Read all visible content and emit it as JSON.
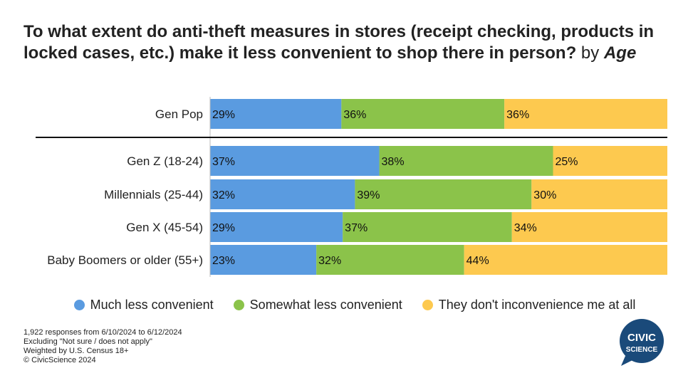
{
  "title": {
    "main": "To what extent do anti-theft measures in stores (receipt checking, products in locked cases, etc.) make it less convenient to shop there in person?",
    "by": "by",
    "dimension": "Age"
  },
  "colors": {
    "much_less": "#5a9be0",
    "somewhat_less": "#8bc34a",
    "not_at_all": "#fdc94f"
  },
  "legend": [
    {
      "label": "Much less convenient",
      "color": "#5a9be0"
    },
    {
      "label": "Somewhat less convenient",
      "color": "#8bc34a"
    },
    {
      "label": "They don't inconvenience me at all",
      "color": "#fdc94f"
    }
  ],
  "footnotes": [
    "1,922 responses from 6/10/2024 to 6/12/2024",
    "Excluding \"Not sure / does not apply\"",
    "Weighted by U.S. Census 18+",
    "© CivicScience 2024"
  ],
  "logo": {
    "line1": "CIVIC",
    "line2": "SCIENCE"
  },
  "chart_data": {
    "type": "bar",
    "orientation": "horizontal",
    "stacked": true,
    "categories": [
      "Gen Pop",
      "Gen Z (18-24)",
      "Millennials (25-44)",
      "Gen X (45-54)",
      "Baby Boomers or older (55+)"
    ],
    "series": [
      {
        "name": "Much less convenient",
        "values": [
          29,
          37,
          32,
          29,
          23
        ],
        "labels": [
          "29%",
          "37%",
          "32%",
          "29%",
          "23%"
        ]
      },
      {
        "name": "Somewhat less convenient",
        "values": [
          36,
          38,
          39,
          37,
          32
        ],
        "labels": [
          "36%",
          "38%",
          "39%",
          "37%",
          "32%"
        ]
      },
      {
        "name": "They don't inconvenience me at all",
        "values": [
          36,
          25,
          30,
          34,
          44
        ],
        "labels": [
          "36%",
          "25%",
          "30%",
          "34%",
          "44%"
        ]
      }
    ],
    "xlim": [
      0,
      100
    ],
    "grid": false,
    "legend_position": "bottom"
  }
}
